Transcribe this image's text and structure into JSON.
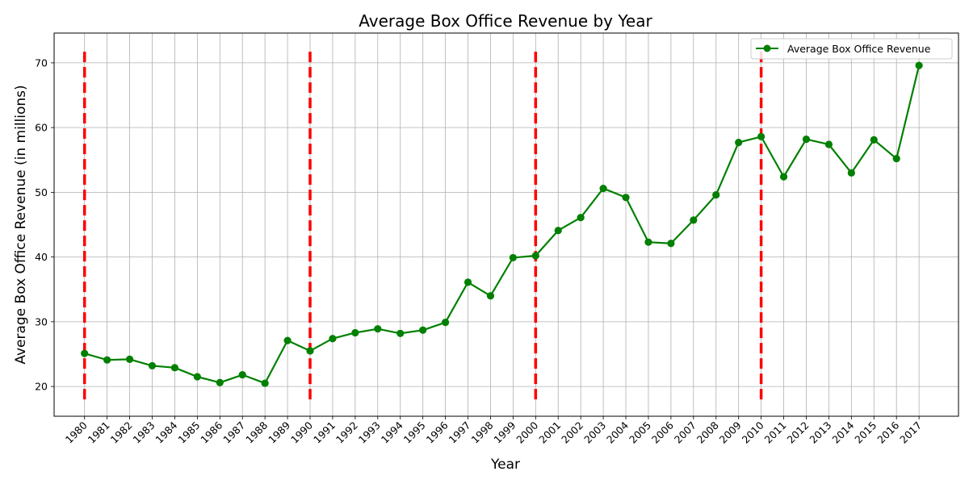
{
  "chart_data": {
    "type": "line",
    "title": "Average Box Office Revenue by Year",
    "xlabel": "Year",
    "ylabel": "Average Box Office Revenue (in millions)",
    "x": [
      1980,
      1981,
      1982,
      1983,
      1984,
      1985,
      1986,
      1987,
      1988,
      1989,
      1990,
      1991,
      1992,
      1993,
      1994,
      1995,
      1996,
      1997,
      1998,
      1999,
      2000,
      2001,
      2002,
      2003,
      2004,
      2005,
      2006,
      2007,
      2008,
      2009,
      2010,
      2011,
      2012,
      2013,
      2014,
      2015,
      2016,
      2017
    ],
    "series": [
      {
        "name": "Average Box Office Revenue",
        "color": "#008000",
        "marker": "circle",
        "values": [
          25.1,
          24.1,
          24.2,
          23.2,
          22.9,
          21.5,
          20.6,
          21.8,
          20.5,
          27.1,
          25.5,
          27.4,
          28.3,
          28.9,
          28.2,
          28.7,
          29.9,
          36.1,
          34.0,
          39.9,
          40.2,
          44.1,
          46.1,
          50.6,
          49.2,
          42.3,
          42.1,
          45.7,
          49.6,
          57.7,
          58.6,
          52.4,
          58.2,
          57.4,
          53.0,
          58.1,
          55.2,
          69.6
        ]
      }
    ],
    "vertical_lines": {
      "x": [
        1980,
        1990,
        2000,
        2010
      ],
      "y_range": [
        18,
        72
      ],
      "color": "#ff0000",
      "style": "dashed"
    },
    "ylim": [
      15.4,
      74.6
    ],
    "xlim": [
      1978.65,
      2018.75
    ],
    "yticks": [
      20,
      30,
      40,
      50,
      60,
      70
    ],
    "grid": true,
    "legend_position": "top-right"
  }
}
